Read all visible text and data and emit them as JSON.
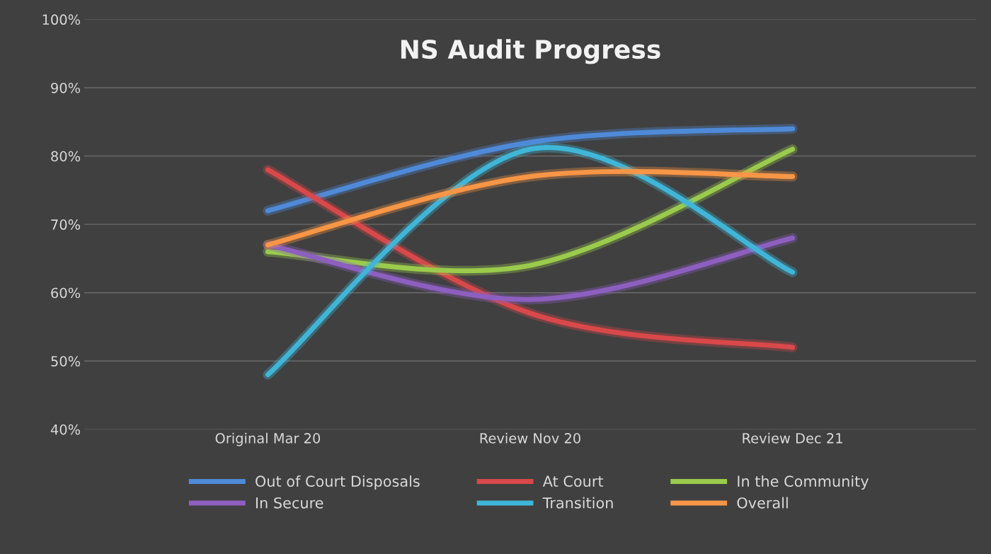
{
  "chart_data": {
    "type": "line",
    "title": "NS Audit Progress",
    "categories": [
      "Original Mar 20",
      "Review Nov 20",
      "Review Dec 21"
    ],
    "series": [
      {
        "name": "Out of Court Disposals",
        "color": "#4f8ad8",
        "values": [
          72,
          82,
          84
        ]
      },
      {
        "name": "At Court",
        "color": "#d9484a",
        "values": [
          78,
          57,
          52
        ]
      },
      {
        "name": "In the Community",
        "color": "#9bcb4c",
        "values": [
          66,
          64,
          81
        ]
      },
      {
        "name": "In Secure",
        "color": "#8d5fbf",
        "values": [
          67,
          59,
          68
        ]
      },
      {
        "name": "Transition",
        "color": "#3fb6d8",
        "values": [
          48,
          81,
          63
        ]
      },
      {
        "name": "Overall",
        "color": "#f79646",
        "values": [
          67,
          77,
          77
        ]
      }
    ],
    "ylim": [
      40,
      100
    ],
    "yticks": [
      {
        "value": 40,
        "label": "40%"
      },
      {
        "value": 50,
        "label": "50%"
      },
      {
        "value": 60,
        "label": "60%"
      },
      {
        "value": 70,
        "label": "70%"
      },
      {
        "value": 80,
        "label": "80%"
      },
      {
        "value": 90,
        "label": "90%"
      },
      {
        "value": 100,
        "label": "100%"
      }
    ],
    "grid": "y",
    "legend": "bottom",
    "marker": "none",
    "line_style": "solid"
  }
}
